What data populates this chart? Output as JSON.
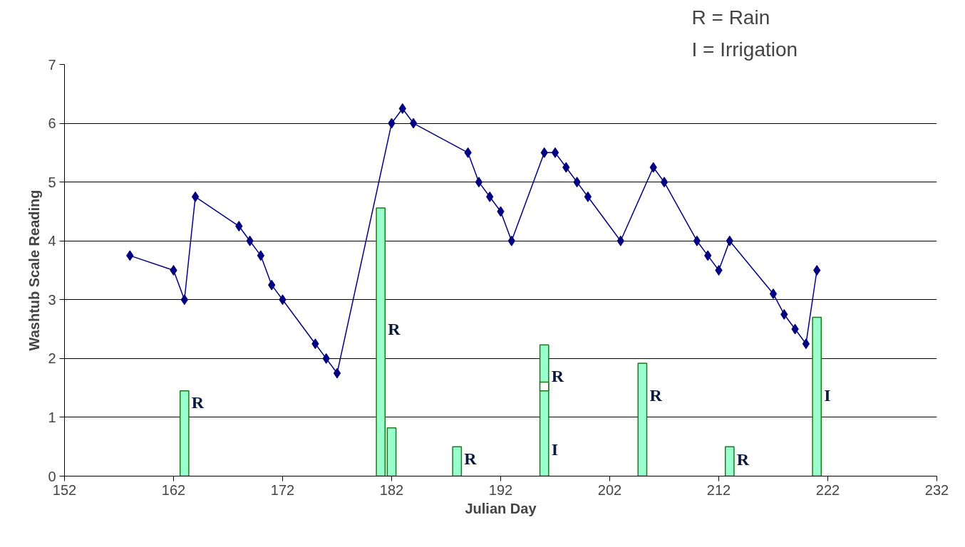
{
  "chart_data": {
    "type": "line",
    "xlabel": "Julian Day",
    "ylabel": "Washtub Scale Reading",
    "xlim": [
      152,
      232
    ],
    "xticks": [
      152,
      162,
      172,
      182,
      192,
      202,
      212,
      222,
      232
    ],
    "ylim": [
      0,
      7
    ],
    "yticks": [
      0,
      1,
      2,
      3,
      4,
      5,
      6,
      7
    ],
    "grid": "y",
    "marker": "diamond",
    "line_style": "solid",
    "series": [
      {
        "type": "bar",
        "color": "#99ffcc",
        "x": [
          163,
          181,
          182,
          188,
          196,
          205,
          213,
          221
        ],
        "values": [
          1.45,
          4.56,
          0.82,
          0.5,
          2.23,
          1.92,
          0.5,
          2.7
        ]
      },
      {
        "type": "bar",
        "color": "#ffffff",
        "x": [
          196
        ],
        "base": [
          1.45
        ],
        "values": [
          0.15
        ]
      },
      {
        "color": "#000080",
        "x": [
          158,
          162,
          163,
          164,
          168,
          169,
          170,
          171,
          172,
          175,
          176,
          177,
          182,
          183,
          184,
          189,
          190,
          191,
          192,
          193,
          196,
          197,
          198,
          199,
          200,
          203,
          206,
          207,
          210,
          211,
          212,
          213,
          217,
          218,
          219,
          220,
          221
        ],
        "values": [
          3.75,
          3.5,
          3.0,
          4.75,
          4.25,
          4.0,
          3.75,
          3.25,
          3.0,
          2.25,
          2.0,
          1.75,
          6.0,
          6.25,
          6.0,
          5.5,
          5.0,
          4.75,
          4.5,
          4.0,
          5.5,
          5.5,
          5.25,
          5.0,
          4.75,
          4.0,
          5.25,
          5.0,
          4.0,
          3.75,
          3.5,
          4.0,
          3.1,
          2.75,
          2.5,
          2.25,
          3.5
        ]
      }
    ],
    "annotations": [
      "R",
      "R",
      "R",
      "R",
      "I",
      "R",
      "R",
      "I",
      "R = Rain",
      "I =  Irrigation"
    ]
  }
}
